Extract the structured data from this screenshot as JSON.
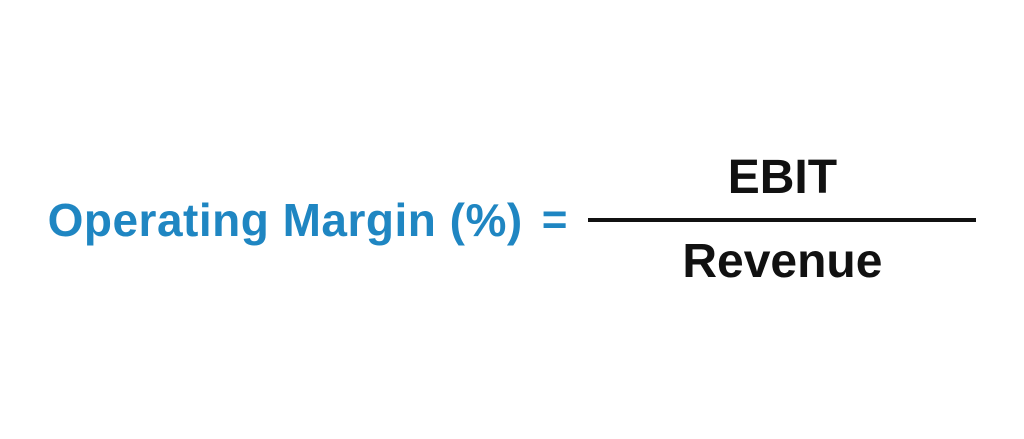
{
  "formula": {
    "lhs": "Operating Margin (%)",
    "equals": "=",
    "numerator": "EBIT",
    "denominator": "Revenue"
  },
  "colors": {
    "lhs_blue": "#1f86c2",
    "text_black": "#111111",
    "background": "#ffffff"
  }
}
